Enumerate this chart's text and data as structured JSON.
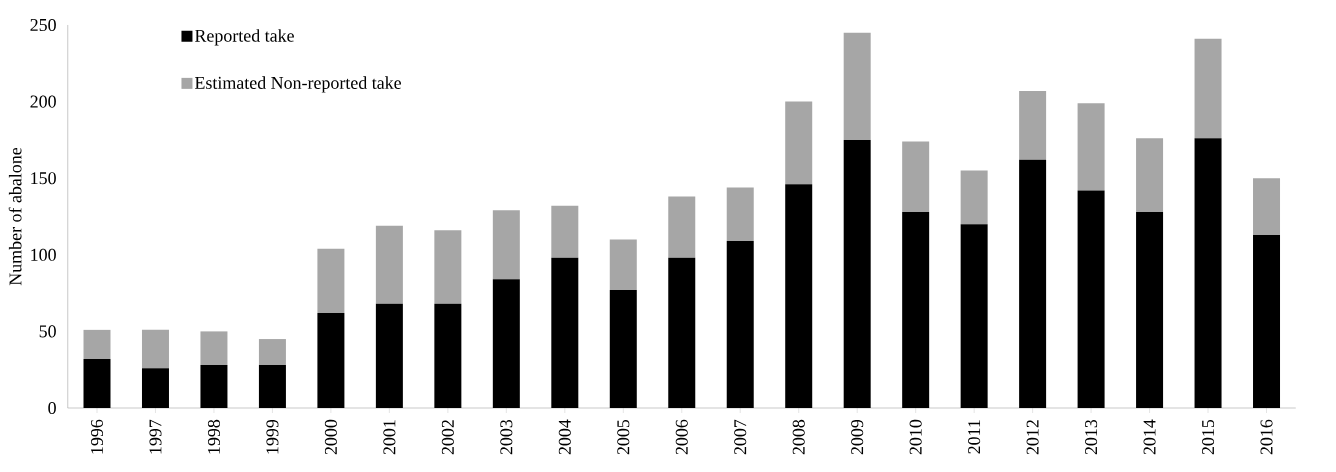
{
  "chart_data": {
    "type": "bar",
    "stacked": true,
    "ylabel": "Number of abalone",
    "categories": [
      "1996",
      "1997",
      "1998",
      "1999",
      "2000",
      "2001",
      "2002",
      "2003",
      "2004",
      "2005",
      "2006",
      "2007",
      "2008",
      "2009",
      "2010",
      "2011",
      "2012",
      "2013",
      "2014",
      "2015",
      "2016"
    ],
    "series": [
      {
        "name": "Reported take",
        "color": "#000000",
        "values": [
          32,
          26,
          28,
          28,
          62,
          68,
          68,
          84,
          98,
          77,
          98,
          109,
          146,
          175,
          128,
          120,
          162,
          142,
          128,
          176,
          113
        ]
      },
      {
        "name": "Estimated Non-reported take",
        "color": "#a6a6a6",
        "values": [
          19,
          25,
          22,
          17,
          42,
          51,
          48,
          45,
          34,
          33,
          40,
          35,
          54,
          70,
          46,
          35,
          45,
          57,
          48,
          65,
          37
        ]
      }
    ],
    "ylim": [
      0,
      250
    ],
    "yticks": [
      0,
      50,
      100,
      150,
      200,
      250
    ],
    "grid": false,
    "legend": "top left"
  }
}
